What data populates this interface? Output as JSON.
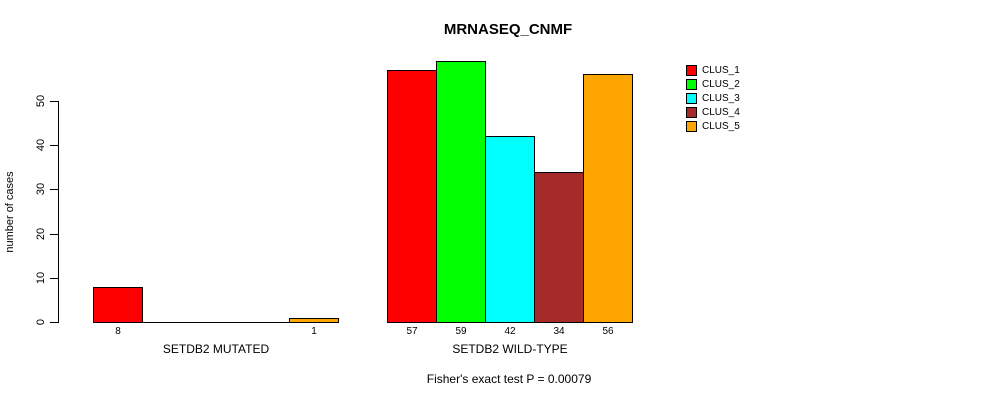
{
  "chart_data": {
    "type": "bar",
    "title": "MRNASEQ_CNMF",
    "ylabel": "number of cases",
    "yticks": [
      0,
      10,
      20,
      30,
      40,
      50
    ],
    "ylim": [
      0,
      59
    ],
    "grid": false,
    "legend_position": "right",
    "legend": [
      {
        "label": "CLUS_1",
        "color": "#FF0000"
      },
      {
        "label": "CLUS_2",
        "color": "#00FF00"
      },
      {
        "label": "CLUS_3",
        "color": "#00FFFF"
      },
      {
        "label": "CLUS_4",
        "color": "#A52A2A"
      },
      {
        "label": "CLUS_5",
        "color": "#FFA500"
      }
    ],
    "groups": [
      {
        "label": "SETDB2 MUTATED",
        "values": [
          8,
          0,
          0,
          0,
          1
        ],
        "value_labels": [
          "8",
          "",
          "",
          "",
          "1"
        ]
      },
      {
        "label": "SETDB2 WILD-TYPE",
        "values": [
          57,
          59,
          42,
          34,
          56
        ],
        "value_labels": [
          "57",
          "59",
          "42",
          "34",
          "56"
        ]
      }
    ],
    "annotation": "Fisher's exact test P = 0.00079",
    "bar_border_color": "#000000",
    "background_color": "#FFFFFF"
  }
}
